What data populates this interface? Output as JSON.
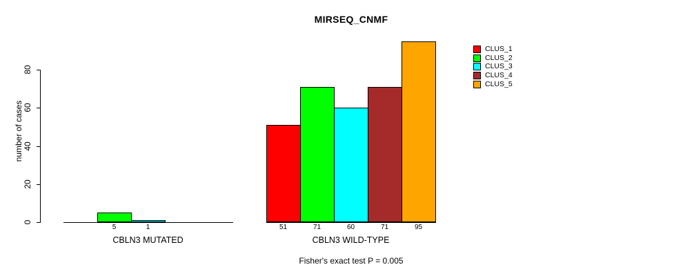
{
  "figure": {
    "title": "MIRSEQ_CNMF",
    "ylabel": "number of cases",
    "footnote": "Fisher's exact test P = 0.005"
  },
  "chart_data": {
    "type": "bar",
    "title": "MIRSEQ_CNMF",
    "xlabel": "",
    "ylabel": "number of cases",
    "ylim": [
      0,
      95
    ],
    "yticks": [
      0,
      20,
      40,
      60,
      80
    ],
    "grid": false,
    "legend_position": "topright",
    "categories": [
      "CBLN3 MUTATED",
      "CBLN3 WILD-TYPE"
    ],
    "series": [
      {
        "name": "CLUS_1",
        "color": "#FF0000",
        "values": [
          0,
          51
        ]
      },
      {
        "name": "CLUS_2",
        "color": "#00FF00",
        "values": [
          5,
          71
        ]
      },
      {
        "name": "CLUS_3",
        "color": "#00FFFF",
        "values": [
          1,
          60
        ]
      },
      {
        "name": "CLUS_4",
        "color": "#A52A2A",
        "values": [
          0,
          71
        ]
      },
      {
        "name": "CLUS_5",
        "color": "#FFA500",
        "values": [
          0,
          95
        ]
      }
    ],
    "bar_value_labels": {
      "CBLN3 MUTATED": [
        null,
        5,
        1,
        null,
        null
      ],
      "CBLN3 WILD-TYPE": [
        51,
        71,
        60,
        71,
        95
      ],
      "note": "labels shown only for non-zero bars, below baseline"
    },
    "annotation": "Fisher's exact test P = 0.005",
    "axis_color": "#000000",
    "bar_border_color": "#000000"
  }
}
